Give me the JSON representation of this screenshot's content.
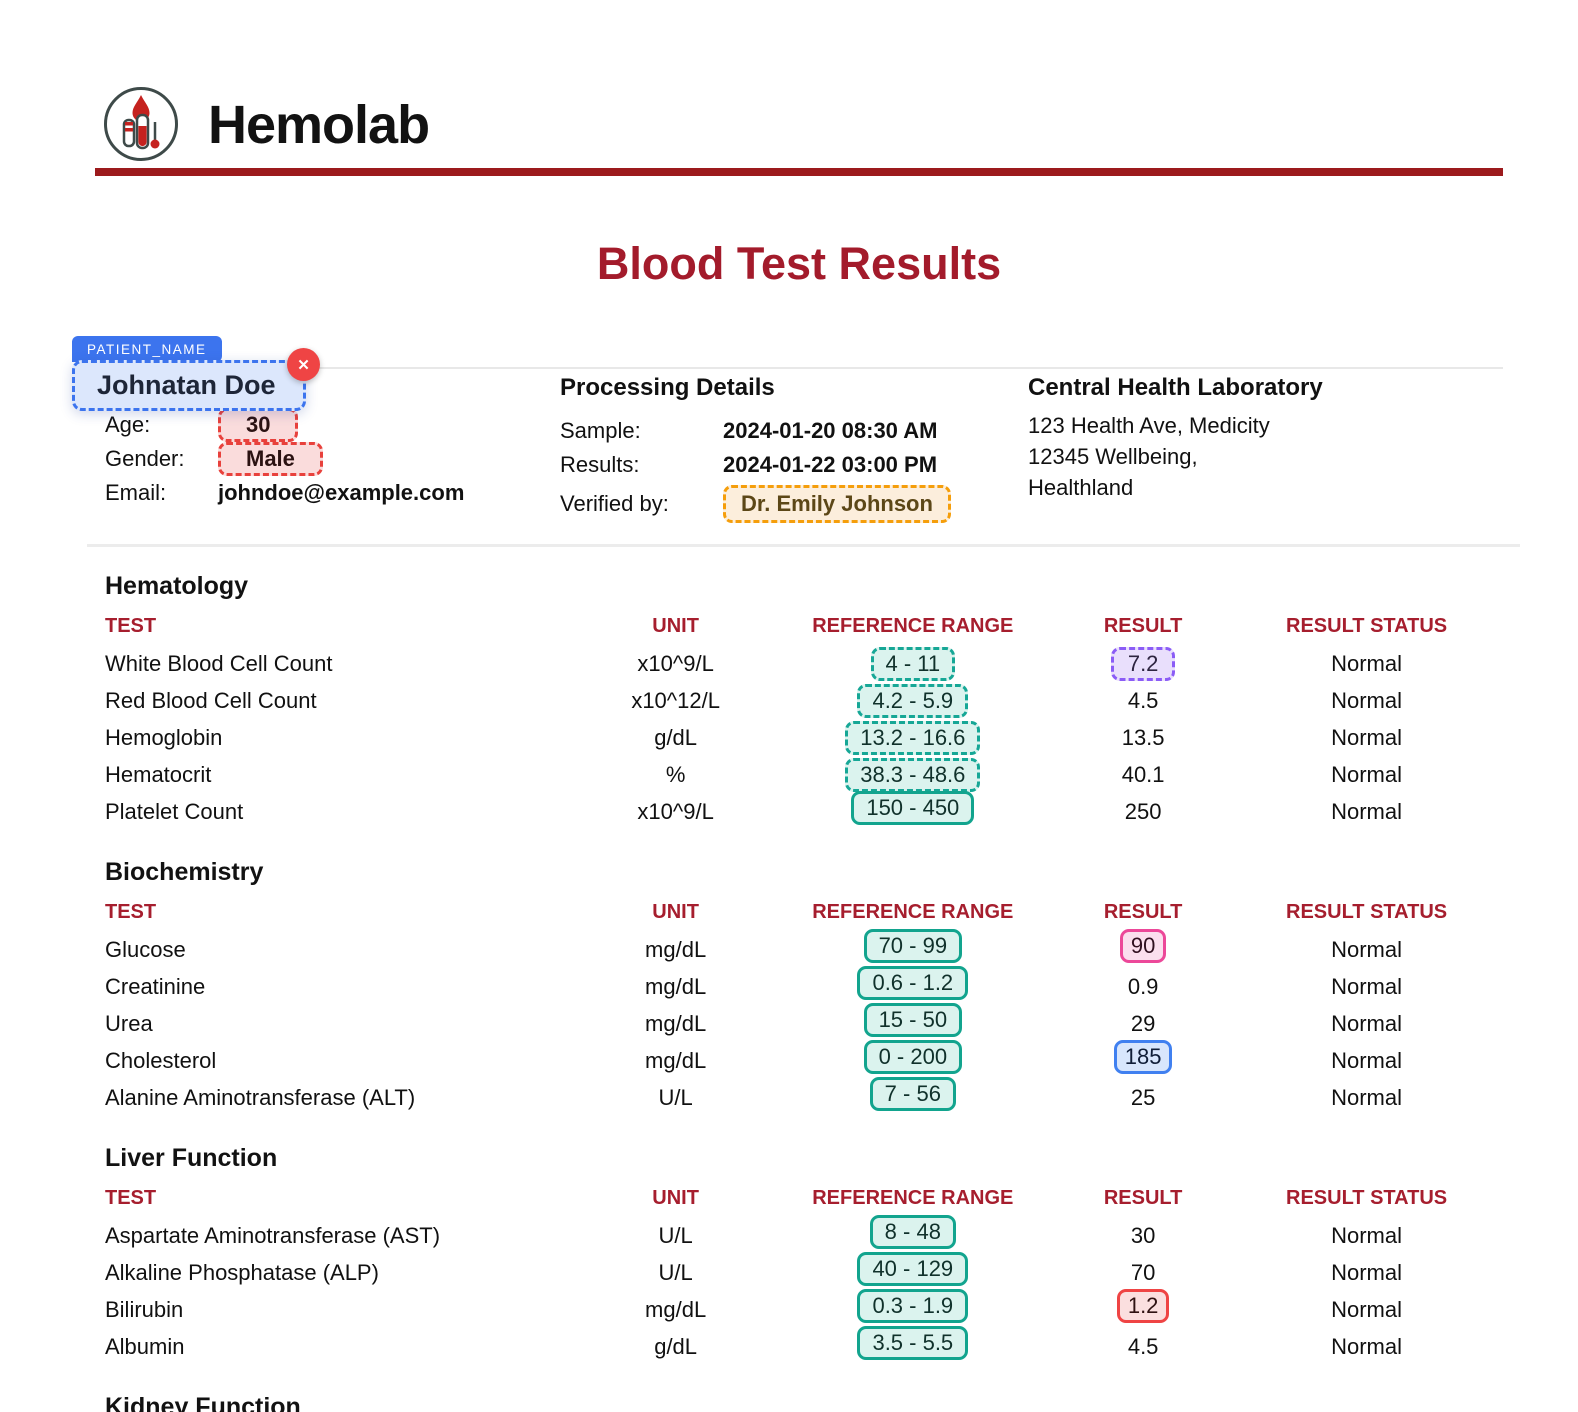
{
  "brand": {
    "name": "Hemolab"
  },
  "title": "Blood Test Results",
  "annotation": {
    "tag_label": "PATIENT_NAME",
    "value": "Johnatan Doe",
    "close_icon": "✕"
  },
  "patient": {
    "age_label": "Age:",
    "age": "30",
    "gender_label": "Gender:",
    "gender": "Male",
    "email_label": "Email:",
    "email": "johndoe@example.com"
  },
  "processing": {
    "heading": "Processing Details",
    "sample_label": "Sample:",
    "sample": "2024-01-20 08:30 AM",
    "results_label": "Results:",
    "results": "2024-01-22 03:00 PM",
    "verified_label": "Verified by:",
    "verified": "Dr. Emily Johnson"
  },
  "laboratory": {
    "heading": "Central Health Laboratory",
    "address_lines": [
      "123 Health Ave, Medicity",
      "12345 Wellbeing,",
      "Healthland"
    ]
  },
  "table_headers": [
    "TEST",
    "UNIT",
    "REFERENCE RANGE",
    "RESULT",
    "RESULT STATUS"
  ],
  "sections": [
    {
      "heading": "Hematology",
      "rows": [
        {
          "test": "White Blood Cell Count",
          "unit": "x10^9/L",
          "range": "4 - 11",
          "range_style": "teal-dashed",
          "result": "7.2",
          "result_style": "purple-dashed",
          "status": "Normal"
        },
        {
          "test": "Red Blood Cell Count",
          "unit": "x10^12/L",
          "range": "4.2 - 5.9",
          "range_style": "teal-dashed",
          "result": "4.5",
          "result_style": "none",
          "status": "Normal"
        },
        {
          "test": "Hemoglobin",
          "unit": "g/dL",
          "range": "13.2 - 16.6",
          "range_style": "teal-dashed",
          "result": "13.5",
          "result_style": "none",
          "status": "Normal"
        },
        {
          "test": "Hematocrit",
          "unit": "%",
          "range": "38.3 - 48.6",
          "range_style": "teal-dashed",
          "result": "40.1",
          "result_style": "none",
          "status": "Normal"
        },
        {
          "test": "Platelet Count",
          "unit": "x10^9/L",
          "range": "150 - 450",
          "range_style": "teal-solid",
          "result": "250",
          "result_style": "none",
          "status": "Normal"
        }
      ]
    },
    {
      "heading": "Biochemistry",
      "rows": [
        {
          "test": "Glucose",
          "unit": "mg/dL",
          "range": "70 - 99",
          "range_style": "teal-solid",
          "result": "90",
          "result_style": "pink-solid",
          "status": "Normal"
        },
        {
          "test": "Creatinine",
          "unit": "mg/dL",
          "range": "0.6 - 1.2",
          "range_style": "teal-solid",
          "result": "0.9",
          "result_style": "none",
          "status": "Normal"
        },
        {
          "test": "Urea",
          "unit": "mg/dL",
          "range": "15 - 50",
          "range_style": "teal-solid",
          "result": "29",
          "result_style": "none",
          "status": "Normal"
        },
        {
          "test": "Cholesterol",
          "unit": "mg/dL",
          "range": "0 - 200",
          "range_style": "teal-solid",
          "result": "185",
          "result_style": "blue-solid",
          "status": "Normal"
        },
        {
          "test": "Alanine Aminotransferase (ALT)",
          "unit": "U/L",
          "range": "7 - 56",
          "range_style": "teal-solid",
          "result": "25",
          "result_style": "none",
          "status": "Normal"
        }
      ]
    },
    {
      "heading": "Liver Function",
      "rows": [
        {
          "test": "Aspartate Aminotransferase (AST)",
          "unit": "U/L",
          "range": "8 - 48",
          "range_style": "teal-solid",
          "result": "30",
          "result_style": "none",
          "status": "Normal"
        },
        {
          "test": "Alkaline Phosphatase (ALP)",
          "unit": "U/L",
          "range": "40 - 129",
          "range_style": "teal-solid",
          "result": "70",
          "result_style": "none",
          "status": "Normal"
        },
        {
          "test": "Bilirubin",
          "unit": "mg/dL",
          "range": "0.3 - 1.9",
          "range_style": "teal-solid",
          "result": "1.2",
          "result_style": "red-solid",
          "status": "Normal"
        },
        {
          "test": "Albumin",
          "unit": "g/dL",
          "range": "3.5 - 5.5",
          "range_style": "teal-solid",
          "result": "4.5",
          "result_style": "none",
          "status": "Normal"
        }
      ]
    },
    {
      "heading": "Kidney Function",
      "rows": []
    }
  ],
  "colors": {
    "brand_rule": "#9C1A1D",
    "title": "#A31B2B",
    "table_header": "#A61E2E",
    "annotation_blue": "#3C74EE",
    "teal": "#14A896",
    "purple": "#8B5CF6",
    "pink": "#EC4899",
    "blue": "#4080F0",
    "red": "#EF4444",
    "orange": "#F59E0B"
  }
}
